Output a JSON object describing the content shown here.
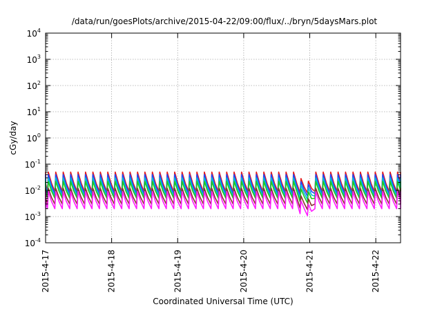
{
  "chart_data": {
    "type": "line",
    "title": "/data/run/goesPlots/archive/2015-04-22/09:00/flux/../bryn/5daysMars.plot",
    "xlabel": "Coordinated Universal Time (UTC)",
    "ylabel": "cGy/day",
    "yscale": "log",
    "ylim": [
      0.0001,
      10000
    ],
    "xlim": [
      "2015-04-17T00:00",
      "2015-04-22T09:00"
    ],
    "grid": true,
    "legend": "none",
    "y_ticks": [
      {
        "base": "10",
        "exp": "-4",
        "value": 0.0001
      },
      {
        "base": "10",
        "exp": "-3",
        "value": 0.001
      },
      {
        "base": "10",
        "exp": "-2",
        "value": 0.01
      },
      {
        "base": "10",
        "exp": "-1",
        "value": 0.1
      },
      {
        "base": "10",
        "exp": "0",
        "value": 1
      },
      {
        "base": "10",
        "exp": "1",
        "value": 10
      },
      {
        "base": "10",
        "exp": "2",
        "value": 100
      },
      {
        "base": "10",
        "exp": "3",
        "value": 1000
      },
      {
        "base": "10",
        "exp": "4",
        "value": 10000
      }
    ],
    "x_ticks": [
      {
        "label": "2015-4-17",
        "value": "2015-04-17T00:00"
      },
      {
        "label": "2015-4-18",
        "value": "2015-04-18T00:00"
      },
      {
        "label": "2015-4-19",
        "value": "2015-04-19T00:00"
      },
      {
        "label": "2015-4-20",
        "value": "2015-04-20T00:00"
      },
      {
        "label": "2015-4-21",
        "value": "2015-04-21T00:00"
      },
      {
        "label": "2015-4-22",
        "value": "2015-04-22T00:00"
      }
    ],
    "cycle_hours": 2.7,
    "dip": {
      "start": "2015-04-20T19:00",
      "end": "2015-04-21T02:00"
    },
    "series": [
      {
        "color": "#e41a1c",
        "peak": 0.05,
        "trough": 0.009,
        "dip_trough": 0.0075
      },
      {
        "color": "#1f49ff",
        "peak": 0.04,
        "trough": 0.0075,
        "dip_trough": 0.0055
      },
      {
        "color": "#00bcd4",
        "peak": 0.03,
        "trough": 0.006,
        "dip_trough": 0.004
      },
      {
        "color": "#1ec81e",
        "peak": 0.022,
        "trough": 0.005,
        "dip_trough": 0.0028
      },
      {
        "color": "#8b2f2f",
        "peak": 0.012,
        "trough": 0.003,
        "dip_trough": 0.0015
      },
      {
        "color": "#ff1dff",
        "peak": 0.009,
        "trough": 0.002,
        "dip_trough": 0.00085
      }
    ]
  }
}
